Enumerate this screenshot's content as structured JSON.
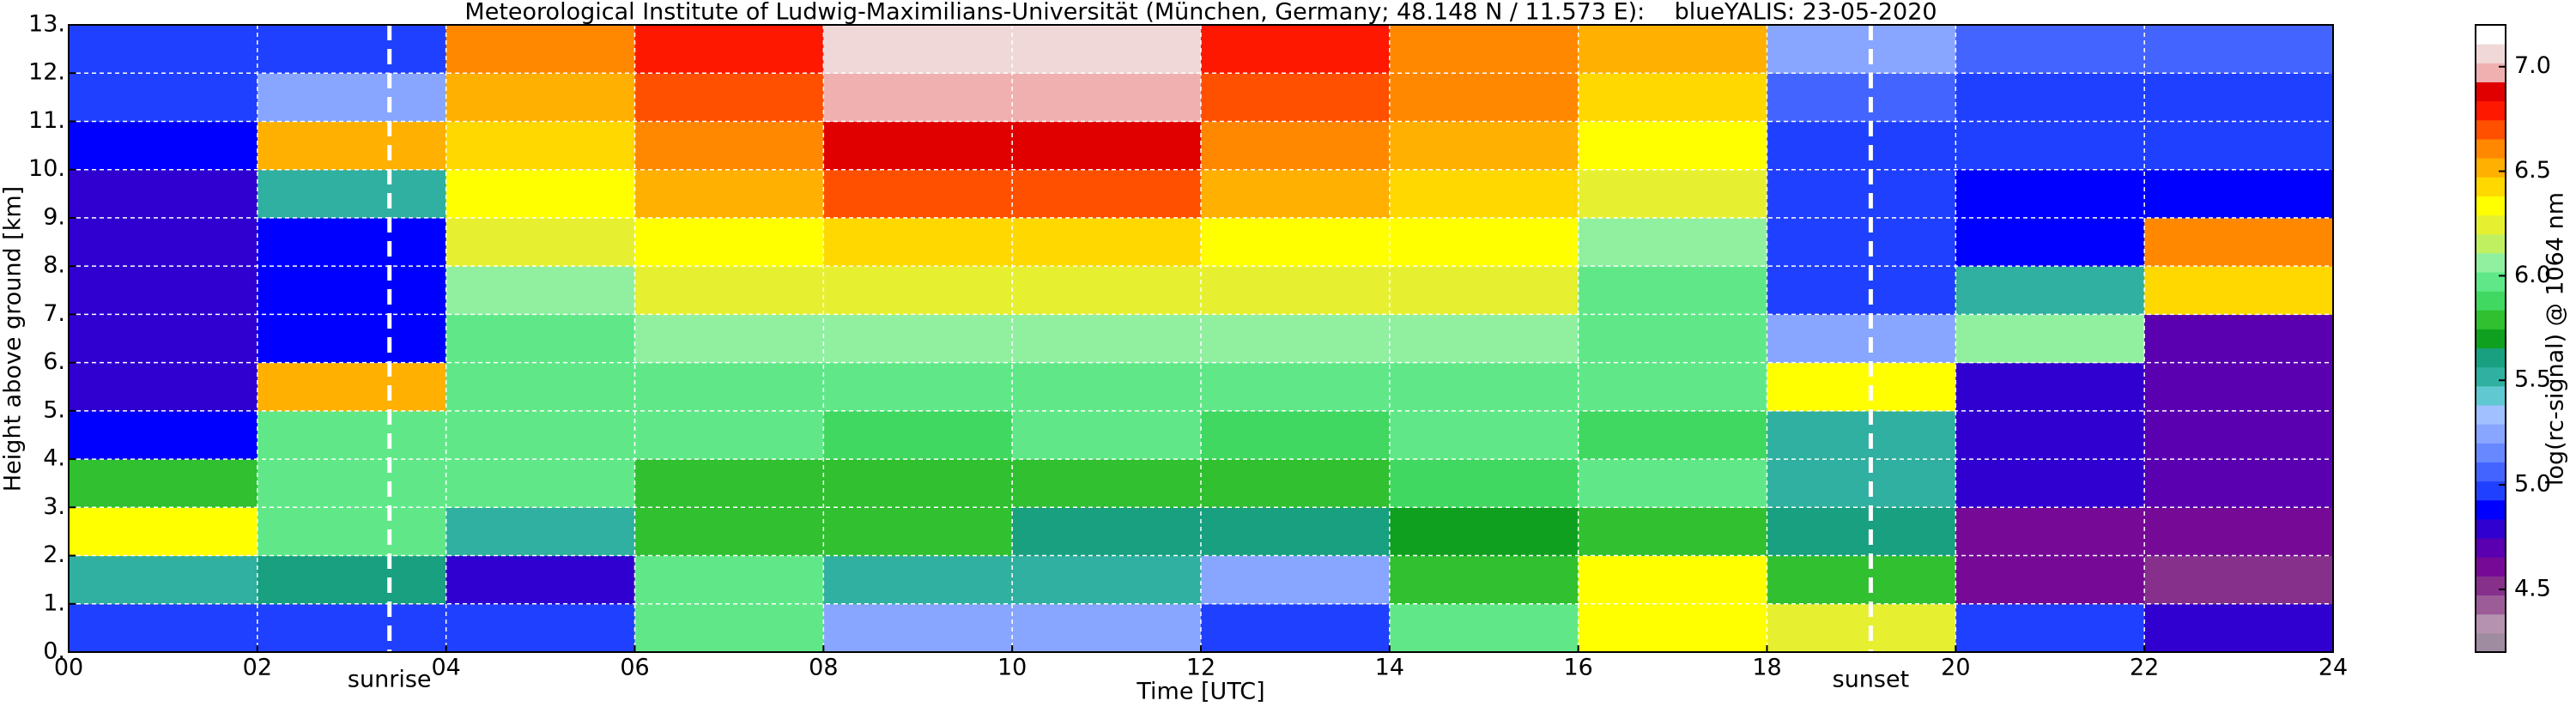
{
  "chart_data": {
    "type": "heatmap",
    "title": "Meteorological Institute of Ludwig-Maximilians-Universität (München, Germany; 48.148 N / 11.573 E):    blueYALIS: 23-05-2020",
    "x_label": "Time [UTC]",
    "y_label": "Height above ground [km]",
    "colorbar_label": "log(rc-signal) @ 1064 nm",
    "xlim": [
      0,
      24
    ],
    "ylim": [
      0,
      13
    ],
    "zlim": [
      4.2,
      7.2
    ],
    "xticks": [
      {
        "value": 0,
        "label": "00"
      },
      {
        "value": 2,
        "label": "02"
      },
      {
        "value": 4,
        "label": "04"
      },
      {
        "value": 6,
        "label": "06"
      },
      {
        "value": 8,
        "label": "08"
      },
      10,
      12,
      14,
      16,
      18,
      20,
      22,
      24
    ],
    "yticks": [
      {
        "value": 0,
        "label": "0."
      },
      {
        "value": 1,
        "label": "1."
      },
      {
        "value": 2,
        "label": "2."
      },
      {
        "value": 3,
        "label": "3."
      },
      {
        "value": 4,
        "label": "4."
      },
      {
        "value": 5,
        "label": "5."
      },
      {
        "value": 6,
        "label": "6."
      },
      {
        "value": 7,
        "label": "7."
      },
      {
        "value": 8,
        "label": "8."
      },
      {
        "value": 9,
        "label": "9."
      },
      {
        "value": 10,
        "label": "10."
      },
      {
        "value": 11,
        "label": "11."
      },
      {
        "value": 12,
        "label": "12."
      },
      {
        "value": 13,
        "label": "13."
      }
    ],
    "zticks": [
      4.5,
      {
        "value": 5,
        "label": "5.0"
      },
      5.5,
      {
        "value": 6,
        "label": "6.0"
      },
      6.5,
      {
        "value": 7,
        "label": "7.0"
      }
    ],
    "grid": true,
    "colormap": [
      "#a08ca0",
      "#b592b0",
      "#9c5c98",
      "#86308c",
      "#760a96",
      "#5a00b0",
      "#3000d0",
      "#0000ff",
      "#2040ff",
      "#4464ff",
      "#6888ff",
      "#88a6ff",
      "#a0c0ff",
      "#60c8d0",
      "#30b0a0",
      "#18a080",
      "#10a020",
      "#30c030",
      "#40d860",
      "#60e888",
      "#90f0a0",
      "#c0f060",
      "#e6f030",
      "#ffff00",
      "#ffd800",
      "#ffb000",
      "#ff8800",
      "#ff5000",
      "#ff1800",
      "#e00000",
      "#f0b0b0",
      "#f0d8d8",
      "#ffffff"
    ],
    "x_bins": [
      0,
      2,
      4,
      6,
      8,
      10,
      12,
      14,
      16,
      18,
      20,
      22,
      24
    ],
    "y_bins": [
      0,
      1,
      2,
      3,
      4,
      5,
      6,
      7,
      8,
      9,
      10,
      11,
      12,
      13
    ],
    "z": [
      [
        5.0,
        5.0,
        5.0,
        6.0,
        5.2,
        5.2,
        5.0,
        6.0,
        6.3,
        6.2,
        5.0,
        4.8
      ],
      [
        5.5,
        5.6,
        4.8,
        6.0,
        5.5,
        5.5,
        5.2,
        5.8,
        6.3,
        5.8,
        4.6,
        4.5
      ],
      [
        6.3,
        6.0,
        5.5,
        5.8,
        5.8,
        5.6,
        5.6,
        5.7,
        5.8,
        5.6,
        4.6,
        4.6
      ],
      [
        5.8,
        6.0,
        6.0,
        5.8,
        5.8,
        5.8,
        5.8,
        5.9,
        6.0,
        5.5,
        4.8,
        4.7
      ],
      [
        4.9,
        6.0,
        6.0,
        6.0,
        5.9,
        6.0,
        5.9,
        6.0,
        5.9,
        5.5,
        4.8,
        4.7
      ],
      [
        4.8,
        6.5,
        6.0,
        6.0,
        6.0,
        6.0,
        6.0,
        6.0,
        6.0,
        6.3,
        4.8,
        4.7
      ],
      [
        4.8,
        4.9,
        6.0,
        6.1,
        6.1,
        6.1,
        6.1,
        6.1,
        6.0,
        5.2,
        6.1,
        4.7
      ],
      [
        4.8,
        4.9,
        6.1,
        6.2,
        6.2,
        6.2,
        6.2,
        6.2,
        6.0,
        5.0,
        5.5,
        6.4
      ],
      [
        4.8,
        4.9,
        6.2,
        6.3,
        6.4,
        6.4,
        6.3,
        6.3,
        6.1,
        5.0,
        4.9,
        6.6
      ],
      [
        4.8,
        5.5,
        6.3,
        6.5,
        6.7,
        6.7,
        6.5,
        6.4,
        6.2,
        5.0,
        4.9,
        4.9
      ],
      [
        4.9,
        6.5,
        6.4,
        6.6,
        6.9,
        6.9,
        6.6,
        6.5,
        6.3,
        5.0,
        5.0,
        5.0
      ],
      [
        5.0,
        5.2,
        6.5,
        6.7,
        7.0,
        7.0,
        6.7,
        6.6,
        6.4,
        5.1,
        5.0,
        5.0
      ],
      [
        5.0,
        5.0,
        6.6,
        6.8,
        7.1,
        7.1,
        6.8,
        6.6,
        6.5,
        5.2,
        5.1,
        5.1
      ]
    ],
    "annotations": [
      {
        "text": "sunrise",
        "x": 3.4
      },
      {
        "text": "sunset",
        "x": 19.1
      }
    ]
  }
}
